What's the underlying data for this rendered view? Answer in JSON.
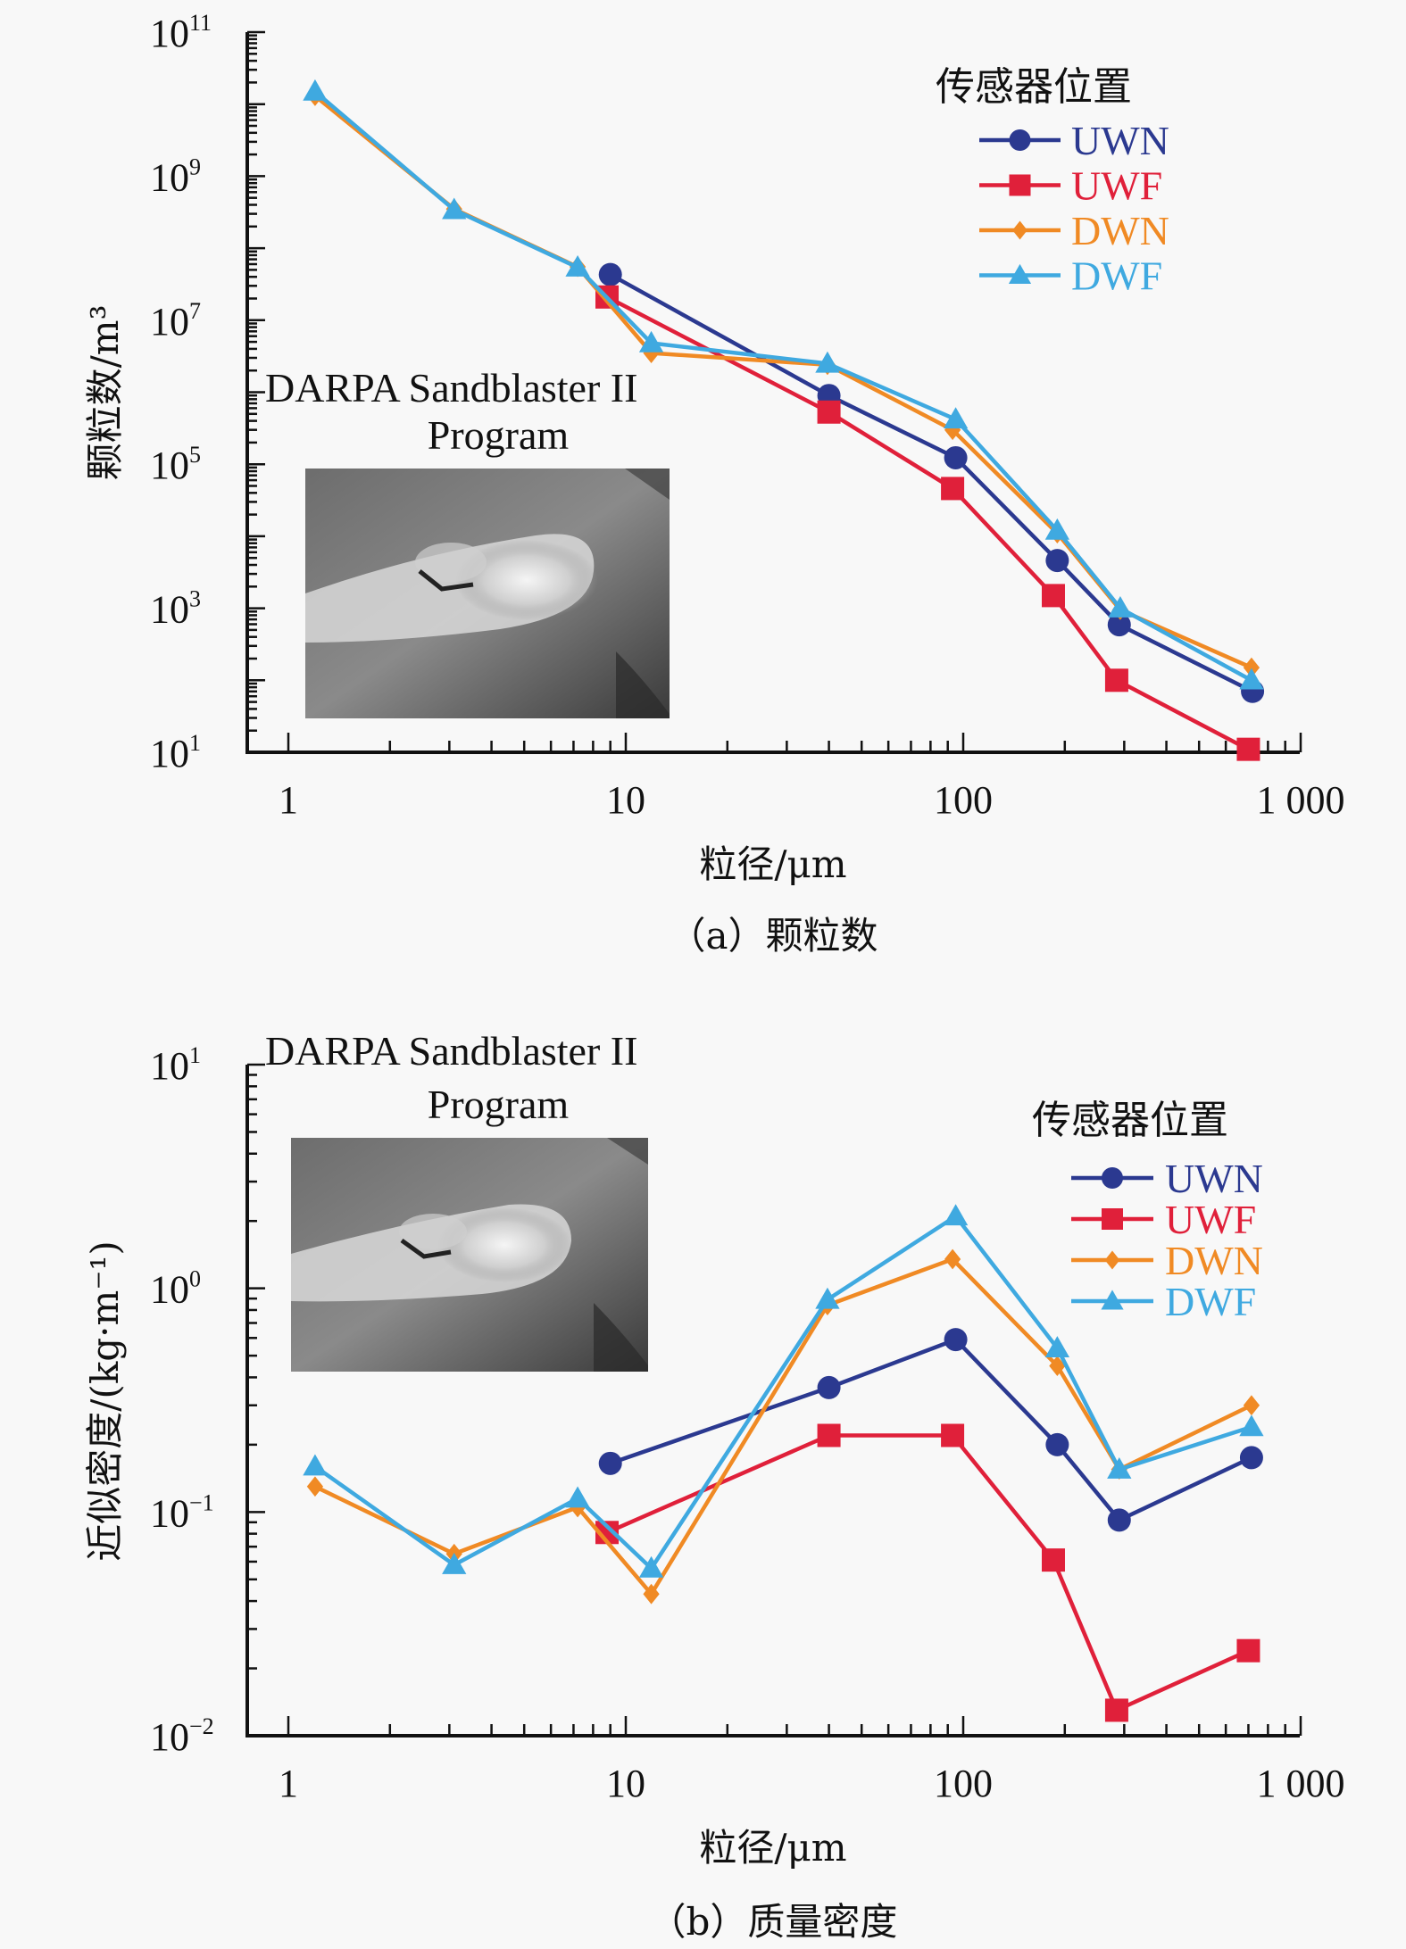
{
  "figure": {
    "colors": {
      "UWN": "#2b3990",
      "UWF": "#e0203a",
      "DWN": "#f08a24",
      "DWF": "#3fa9e0"
    },
    "markers": {
      "UWN": "circle",
      "UWF": "square",
      "DWN": "diamond",
      "DWF": "triangle"
    }
  },
  "chart_data": [
    {
      "id": "a",
      "type": "line",
      "caption": "（a）颗粒数",
      "title": "",
      "xlabel": "粒径/μm",
      "ylabel": "颗粒数/m³",
      "xscale": "log",
      "yscale": "log",
      "xlim": [
        0.8,
        1000
      ],
      "ylim": [
        10,
        100000000000
      ],
      "x_ticks": [
        {
          "value": 1,
          "label": "1"
        },
        {
          "value": 10,
          "label": "10"
        },
        {
          "value": 100,
          "label": "100"
        },
        {
          "value": 1000,
          "label": "1 000"
        }
      ],
      "y_ticks": [
        {
          "value": 10,
          "base": "10",
          "exp": "1"
        },
        {
          "value": 1000,
          "base": "10",
          "exp": "3"
        },
        {
          "value": 100000,
          "base": "10",
          "exp": "5"
        },
        {
          "value": 10000000,
          "base": "10",
          "exp": "7"
        },
        {
          "value": 1000000000,
          "base": "10",
          "exp": "9"
        },
        {
          "value": 100000000000,
          "base": "10",
          "exp": "11"
        }
      ],
      "legend": {
        "title": "传感器位置",
        "position": "top-right"
      },
      "inset": {
        "title_line1": "DARPA Sandblaster II",
        "title_line2": "Program",
        "position": "left"
      },
      "series": [
        {
          "name": "UWN",
          "x": [
            9,
            40,
            95,
            190,
            290,
            720
          ],
          "y": [
            43000000,
            900000,
            123000,
            4600,
            590,
            70
          ]
        },
        {
          "name": "UWF",
          "x": [
            8.8,
            40,
            93,
            185,
            285,
            700
          ],
          "y": [
            21000000,
            530000,
            46000,
            1500,
            100,
            11
          ]
        },
        {
          "name": "DWN",
          "x": [
            1.2,
            3.1,
            7.2,
            11.9,
            39.6,
            93,
            190,
            292,
            715
          ],
          "y": [
            13000000000,
            350000000,
            55000000,
            3500000,
            2400000,
            300000,
            11000,
            950,
            150
          ]
        },
        {
          "name": "DWF",
          "x": [
            1.2,
            3.1,
            7.2,
            11.9,
            39.6,
            95,
            190,
            292,
            715
          ],
          "y": [
            15000000000,
            340000000,
            54000000,
            4800000,
            2500000,
            420000,
            12000,
            1000,
            100
          ]
        }
      ]
    },
    {
      "id": "b",
      "type": "line",
      "caption": "（b）质量密度",
      "title": "",
      "xlabel": "粒径/μm",
      "ylabel": "近似密度/(kg·m⁻¹)",
      "xscale": "log",
      "yscale": "log",
      "xlim": [
        0.8,
        1000
      ],
      "ylim": [
        0.01,
        10
      ],
      "x_ticks": [
        {
          "value": 1,
          "label": "1"
        },
        {
          "value": 10,
          "label": "10"
        },
        {
          "value": 100,
          "label": "100"
        },
        {
          "value": 1000,
          "label": "1 000"
        }
      ],
      "y_ticks": [
        {
          "value": 0.01,
          "base": "10",
          "exp": "−2"
        },
        {
          "value": 0.1,
          "base": "10",
          "exp": "−1"
        },
        {
          "value": 1,
          "base": "10",
          "exp": "0"
        },
        {
          "value": 10,
          "base": "10",
          "exp": "1"
        }
      ],
      "legend": {
        "title": "传感器位置",
        "position": "right"
      },
      "inset": {
        "title_line1": "DARPA Sandblaster II",
        "title_line2": "Program",
        "position": "top-left"
      },
      "series": [
        {
          "name": "UWN",
          "x": [
            9,
            40,
            95,
            190,
            290,
            715
          ],
          "y": [
            0.165,
            0.36,
            0.59,
            0.2,
            0.092,
            0.175
          ]
        },
        {
          "name": "UWF",
          "x": [
            8.8,
            40,
            93,
            185,
            285,
            700
          ],
          "y": [
            0.081,
            0.22,
            0.22,
            0.061,
            0.013,
            0.024
          ]
        },
        {
          "name": "DWN",
          "x": [
            1.2,
            3.1,
            7.2,
            11.9,
            39.6,
            93,
            190,
            290,
            715
          ],
          "y": [
            0.13,
            0.065,
            0.105,
            0.043,
            0.84,
            1.35,
            0.45,
            0.155,
            0.3
          ]
        },
        {
          "name": "DWF",
          "x": [
            1.2,
            3.1,
            7.2,
            11.9,
            39.6,
            95,
            190,
            290,
            715
          ],
          "y": [
            0.16,
            0.058,
            0.115,
            0.056,
            0.89,
            2.1,
            0.54,
            0.155,
            0.24
          ]
        }
      ]
    }
  ]
}
